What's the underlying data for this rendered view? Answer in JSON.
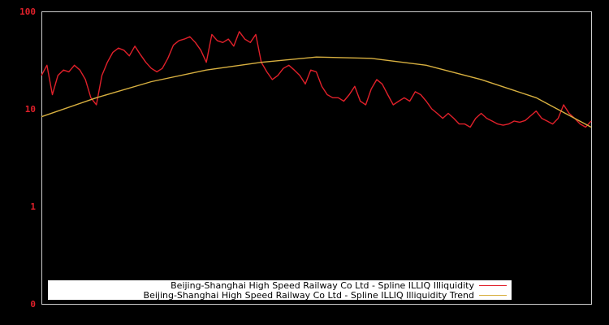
{
  "chart_data": {
    "type": "line",
    "title": "",
    "xlabel": "",
    "ylabel": "",
    "yscale": "log",
    "ylim": [
      0.1,
      100
    ],
    "y_ticks": [
      {
        "value": 100,
        "label": "100"
      },
      {
        "value": 10,
        "label": "10"
      },
      {
        "value": 1,
        "label": "1"
      },
      {
        "value": 0.1,
        "label": "0"
      }
    ],
    "grid": false,
    "legend_position": "bottom-left inside",
    "background": "#000000",
    "axis_color": "#cccccc",
    "tick_label_color": "#e0202a",
    "series": [
      {
        "name": "Beijing-Shanghai High Speed Railway Co Ltd - Spline ILLIQ Illiquidity",
        "color": "#e0202a",
        "x_norm": [
          0.0,
          0.01,
          0.02,
          0.03,
          0.04,
          0.05,
          0.06,
          0.07,
          0.08,
          0.09,
          0.1,
          0.11,
          0.12,
          0.13,
          0.14,
          0.15,
          0.16,
          0.17,
          0.18,
          0.19,
          0.2,
          0.21,
          0.22,
          0.23,
          0.24,
          0.25,
          0.26,
          0.27,
          0.28,
          0.29,
          0.3,
          0.31,
          0.32,
          0.33,
          0.34,
          0.35,
          0.36,
          0.37,
          0.38,
          0.39,
          0.4,
          0.41,
          0.42,
          0.43,
          0.44,
          0.45,
          0.46,
          0.47,
          0.48,
          0.49,
          0.5,
          0.51,
          0.52,
          0.53,
          0.54,
          0.55,
          0.56,
          0.57,
          0.58,
          0.59,
          0.6,
          0.61,
          0.62,
          0.63,
          0.64,
          0.65,
          0.66,
          0.67,
          0.68,
          0.69,
          0.7,
          0.71,
          0.72,
          0.73,
          0.74,
          0.75,
          0.76,
          0.77,
          0.78,
          0.79,
          0.8,
          0.81,
          0.82,
          0.83,
          0.84,
          0.85,
          0.86,
          0.87,
          0.88,
          0.89,
          0.9,
          0.91,
          0.92,
          0.93,
          0.94,
          0.95,
          0.96,
          0.97,
          0.98,
          0.99,
          1.0
        ],
        "values": [
          22,
          28,
          14,
          22,
          25,
          24,
          28,
          25,
          20,
          13,
          11,
          22,
          30,
          38,
          42,
          40,
          35,
          44,
          36,
          30,
          26,
          24,
          26,
          33,
          45,
          50,
          52,
          55,
          48,
          40,
          30,
          58,
          50,
          48,
          52,
          44,
          62,
          52,
          48,
          58,
          30,
          24,
          20,
          22,
          26,
          28,
          25,
          22,
          18,
          25,
          24,
          17,
          14,
          13,
          13,
          12,
          14,
          17,
          12,
          11,
          16,
          20,
          18,
          14,
          11,
          12,
          13,
          12,
          15,
          14,
          12,
          10,
          9,
          8,
          9,
          8,
          7,
          7,
          6.5,
          8,
          9,
          8,
          7.5,
          7,
          6.8,
          7,
          7.5,
          7.3,
          7.6,
          8.5,
          9.5,
          8,
          7.5,
          7,
          8,
          11,
          9,
          8,
          7,
          6.5,
          7.5
        ]
      },
      {
        "name": "Beijing-Shanghai High Speed Railway Co Ltd - Spline ILLIQ Illiquidity Trend",
        "color": "#d8b040",
        "x_norm": [
          0.0,
          0.1,
          0.2,
          0.3,
          0.4,
          0.5,
          0.6,
          0.7,
          0.8,
          0.9,
          1.0
        ],
        "values": [
          8.3,
          13,
          19,
          25,
          30,
          34,
          33,
          28,
          20,
          13,
          6.5
        ]
      }
    ]
  },
  "legend": {
    "items": [
      {
        "label": "Beijing-Shanghai High Speed Railway Co Ltd - Spline ILLIQ Illiquidity",
        "color": "#e0202a"
      },
      {
        "label": "Beijing-Shanghai High Speed Railway Co Ltd - Spline ILLIQ Illiquidity Trend",
        "color": "#d8b040"
      }
    ]
  }
}
